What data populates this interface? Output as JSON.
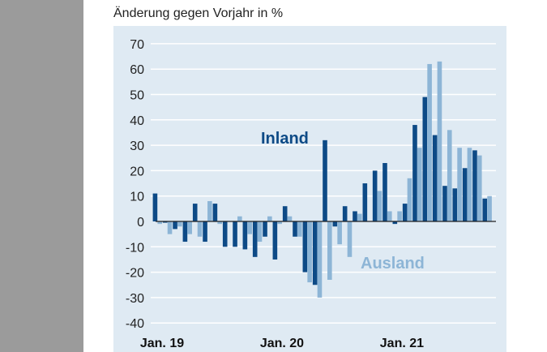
{
  "title": "Änderung gegen Vorjahr in %",
  "chart_data": {
    "type": "bar",
    "title": "Änderung gegen Vorjahr in %",
    "ylim": [
      -40,
      70
    ],
    "yticks": [
      70,
      60,
      50,
      40,
      30,
      20,
      10,
      0,
      -10,
      -20,
      -30,
      -40
    ],
    "xtick_labels": [
      "Jan. 19",
      "Jan. 20",
      "Jan. 21"
    ],
    "categories": [
      "2019-01",
      "2019-02",
      "2019-03",
      "2019-04",
      "2019-05",
      "2019-06",
      "2019-07",
      "2019-08",
      "2019-09",
      "2019-10",
      "2019-11",
      "2019-12",
      "2020-01",
      "2020-02",
      "2020-03",
      "2020-04",
      "2020-05",
      "2020-06",
      "2020-07",
      "2020-08",
      "2020-09",
      "2020-10",
      "2020-11",
      "2020-12",
      "2021-01",
      "2021-02",
      "2021-03",
      "2021-04",
      "2021-05",
      "2021-06",
      "2021-07",
      "2021-08",
      "2021-09",
      "2021-10"
    ],
    "grid": true,
    "series": [
      {
        "name": "Inland",
        "color": "#0d4a86",
        "values": [
          11,
          -0.5,
          -3,
          -8,
          7,
          -8,
          7,
          -10,
          -10,
          -11,
          -14,
          -6,
          -15,
          6,
          -6,
          -20,
          -25,
          32,
          -2,
          6,
          4,
          15,
          20,
          23,
          -1,
          7,
          38,
          49,
          34,
          14,
          13,
          21,
          28,
          9
        ]
      },
      {
        "name": "Ausland",
        "color": "#8db5d6",
        "values": [
          -1,
          -5,
          -2,
          -5,
          -6,
          8,
          -1,
          0,
          2,
          -5,
          -8,
          2,
          -1,
          2,
          -6,
          -24,
          -30,
          -23,
          -9,
          -14,
          3,
          0,
          12,
          4,
          4,
          17,
          29,
          62,
          63,
          36,
          29,
          29,
          26,
          10
        ]
      }
    ]
  }
}
